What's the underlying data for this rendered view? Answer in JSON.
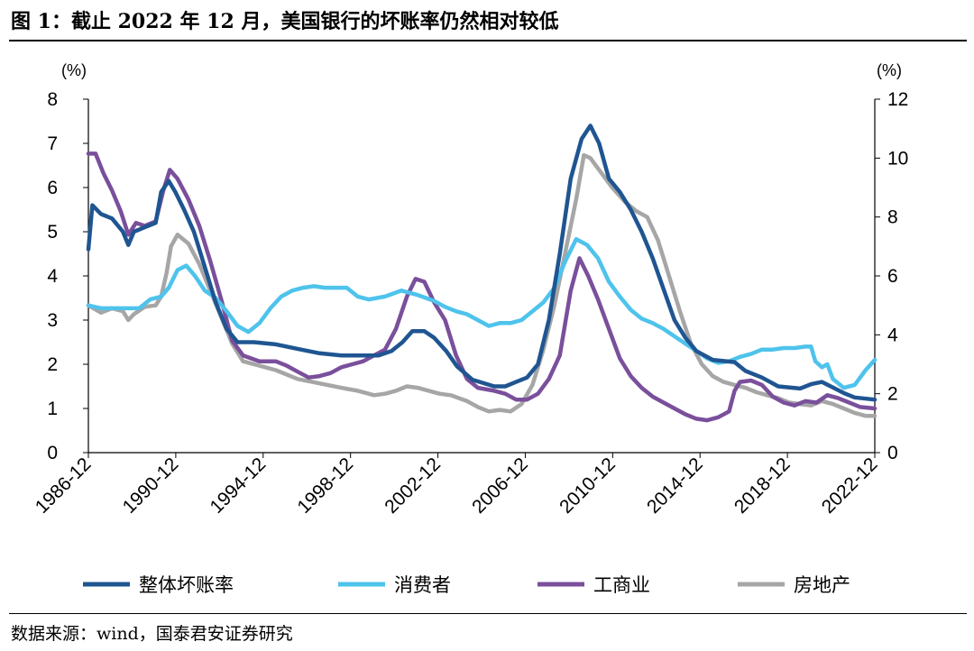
{
  "header": {
    "title": "图 1：截止 2022 年 12 月，美国银行的坏账率仍然相对较低"
  },
  "footer": {
    "source": "数据来源：wind，国泰君安证券研究"
  },
  "chart_data": {
    "type": "line",
    "title": "图 1：截止 2022 年 12 月，美国银行的坏账率仍然相对较低",
    "x_tick_labels": [
      "1986-12",
      "1990-12",
      "1994-12",
      "1998-12",
      "2002-12",
      "2006-12",
      "2010-12",
      "2014-12",
      "2018-12",
      "2022-12"
    ],
    "x_range": [
      1986.92,
      2022.92
    ],
    "y_left": {
      "unit_label": "(%)",
      "range": [
        0,
        8
      ],
      "ticks": [
        "0",
        "1",
        "2",
        "3",
        "4",
        "5",
        "6",
        "7",
        "8"
      ]
    },
    "y_right": {
      "unit_label": "(%)",
      "range": [
        0,
        12
      ],
      "ticks": [
        "0",
        "2",
        "4",
        "6",
        "8",
        "10",
        "12"
      ]
    },
    "grid": false,
    "legend_position": "bottom",
    "series": [
      {
        "name": "整体坏账率",
        "axis": "left",
        "color": "#1f5591",
        "points": [
          [
            1986.92,
            4.6
          ],
          [
            1987.1,
            5.6
          ],
          [
            1987.5,
            5.4
          ],
          [
            1988.0,
            5.3
          ],
          [
            1988.5,
            5.0
          ],
          [
            1988.75,
            4.7
          ],
          [
            1989.0,
            5.0
          ],
          [
            1989.5,
            5.1
          ],
          [
            1990.0,
            5.2
          ],
          [
            1990.25,
            5.9
          ],
          [
            1990.6,
            6.15
          ],
          [
            1990.9,
            5.9
          ],
          [
            1991.3,
            5.5
          ],
          [
            1991.75,
            5.0
          ],
          [
            1992.25,
            4.2
          ],
          [
            1992.75,
            3.4
          ],
          [
            1993.25,
            2.8
          ],
          [
            1993.75,
            2.5
          ],
          [
            1994.5,
            2.5
          ],
          [
            1995.5,
            2.45
          ],
          [
            1996.5,
            2.35
          ],
          [
            1997.5,
            2.25
          ],
          [
            1998.5,
            2.2
          ],
          [
            1999.5,
            2.2
          ],
          [
            2000.2,
            2.2
          ],
          [
            2000.8,
            2.3
          ],
          [
            2001.3,
            2.5
          ],
          [
            2001.75,
            2.75
          ],
          [
            2002.3,
            2.75
          ],
          [
            2002.75,
            2.6
          ],
          [
            2003.3,
            2.3
          ],
          [
            2003.8,
            1.95
          ],
          [
            2004.5,
            1.65
          ],
          [
            2005.5,
            1.5
          ],
          [
            2006.0,
            1.5
          ],
          [
            2006.5,
            1.6
          ],
          [
            2007.0,
            1.7
          ],
          [
            2007.5,
            2.0
          ],
          [
            2008.0,
            3.0
          ],
          [
            2008.5,
            4.5
          ],
          [
            2009.0,
            6.2
          ],
          [
            2009.5,
            7.1
          ],
          [
            2009.9,
            7.4
          ],
          [
            2010.3,
            7.0
          ],
          [
            2010.75,
            6.2
          ],
          [
            2011.25,
            5.9
          ],
          [
            2011.75,
            5.5
          ],
          [
            2012.25,
            5.0
          ],
          [
            2012.75,
            4.4
          ],
          [
            2013.25,
            3.7
          ],
          [
            2013.75,
            3.0
          ],
          [
            2014.25,
            2.6
          ],
          [
            2014.75,
            2.3
          ],
          [
            2015.5,
            2.1
          ],
          [
            2016.5,
            2.05
          ],
          [
            2017.0,
            1.85
          ],
          [
            2017.75,
            1.7
          ],
          [
            2018.5,
            1.5
          ],
          [
            2019.5,
            1.45
          ],
          [
            2020.0,
            1.55
          ],
          [
            2020.5,
            1.6
          ],
          [
            2020.9,
            1.5
          ],
          [
            2021.5,
            1.35
          ],
          [
            2022.0,
            1.25
          ],
          [
            2022.92,
            1.2
          ]
        ]
      },
      {
        "name": "消费者",
        "axis": "right",
        "color": "#4ec3ec",
        "points": [
          [
            1986.92,
            5.0
          ],
          [
            1987.5,
            4.9
          ],
          [
            1988.5,
            4.9
          ],
          [
            1989.25,
            4.9
          ],
          [
            1989.75,
            5.2
          ],
          [
            1990.25,
            5.3
          ],
          [
            1990.6,
            5.6
          ],
          [
            1991.0,
            6.2
          ],
          [
            1991.4,
            6.35
          ],
          [
            1991.8,
            6.0
          ],
          [
            1992.25,
            5.5
          ],
          [
            1992.75,
            5.25
          ],
          [
            1993.25,
            4.8
          ],
          [
            1993.75,
            4.3
          ],
          [
            1994.25,
            4.1
          ],
          [
            1994.75,
            4.4
          ],
          [
            1995.25,
            4.9
          ],
          [
            1995.75,
            5.3
          ],
          [
            1996.25,
            5.5
          ],
          [
            1996.75,
            5.6
          ],
          [
            1997.25,
            5.65
          ],
          [
            1997.75,
            5.6
          ],
          [
            1998.25,
            5.6
          ],
          [
            1998.75,
            5.6
          ],
          [
            1999.25,
            5.3
          ],
          [
            1999.75,
            5.2
          ],
          [
            2000.5,
            5.3
          ],
          [
            2001.25,
            5.5
          ],
          [
            2002.0,
            5.35
          ],
          [
            2002.75,
            5.15
          ],
          [
            2003.25,
            4.95
          ],
          [
            2003.75,
            4.8
          ],
          [
            2004.25,
            4.7
          ],
          [
            2004.75,
            4.5
          ],
          [
            2005.25,
            4.3
          ],
          [
            2005.75,
            4.4
          ],
          [
            2006.25,
            4.4
          ],
          [
            2006.75,
            4.5
          ],
          [
            2007.25,
            4.8
          ],
          [
            2007.75,
            5.1
          ],
          [
            2008.25,
            5.6
          ],
          [
            2008.75,
            6.5
          ],
          [
            2009.25,
            7.25
          ],
          [
            2009.75,
            7.05
          ],
          [
            2010.25,
            6.6
          ],
          [
            2010.75,
            5.8
          ],
          [
            2011.25,
            5.3
          ],
          [
            2011.75,
            4.85
          ],
          [
            2012.25,
            4.55
          ],
          [
            2012.75,
            4.4
          ],
          [
            2013.25,
            4.2
          ],
          [
            2013.75,
            3.95
          ],
          [
            2014.25,
            3.7
          ],
          [
            2014.75,
            3.45
          ],
          [
            2015.25,
            3.2
          ],
          [
            2015.75,
            3.05
          ],
          [
            2016.25,
            3.1
          ],
          [
            2016.75,
            3.25
          ],
          [
            2017.25,
            3.35
          ],
          [
            2017.75,
            3.5
          ],
          [
            2018.25,
            3.5
          ],
          [
            2018.75,
            3.55
          ],
          [
            2019.25,
            3.55
          ],
          [
            2019.75,
            3.6
          ],
          [
            2020.0,
            3.6
          ],
          [
            2020.2,
            3.1
          ],
          [
            2020.5,
            2.9
          ],
          [
            2020.75,
            3.0
          ],
          [
            2021.0,
            2.5
          ],
          [
            2021.5,
            2.2
          ],
          [
            2022.0,
            2.3
          ],
          [
            2022.5,
            2.8
          ],
          [
            2022.92,
            3.15
          ]
        ]
      },
      {
        "name": "工商业",
        "axis": "right",
        "color": "#7a4f9b",
        "points": [
          [
            1986.92,
            10.15
          ],
          [
            1987.25,
            10.15
          ],
          [
            1987.6,
            9.5
          ],
          [
            1988.0,
            8.9
          ],
          [
            1988.4,
            8.2
          ],
          [
            1988.75,
            7.4
          ],
          [
            1989.1,
            7.8
          ],
          [
            1989.5,
            7.7
          ],
          [
            1990.0,
            7.85
          ],
          [
            1990.35,
            8.9
          ],
          [
            1990.65,
            9.6
          ],
          [
            1991.0,
            9.3
          ],
          [
            1991.5,
            8.6
          ],
          [
            1992.0,
            7.7
          ],
          [
            1992.5,
            6.5
          ],
          [
            1993.0,
            5.2
          ],
          [
            1993.5,
            3.8
          ],
          [
            1994.0,
            3.3
          ],
          [
            1994.75,
            3.1
          ],
          [
            1995.5,
            3.1
          ],
          [
            1996.0,
            2.95
          ],
          [
            1996.5,
            2.75
          ],
          [
            1997.0,
            2.55
          ],
          [
            1997.5,
            2.6
          ],
          [
            1998.0,
            2.7
          ],
          [
            1998.5,
            2.9
          ],
          [
            1999.0,
            3.0
          ],
          [
            1999.5,
            3.1
          ],
          [
            2000.0,
            3.3
          ],
          [
            2000.5,
            3.5
          ],
          [
            2001.0,
            4.2
          ],
          [
            2001.5,
            5.3
          ],
          [
            2001.9,
            5.9
          ],
          [
            2002.3,
            5.8
          ],
          [
            2002.75,
            5.1
          ],
          [
            2003.25,
            4.5
          ],
          [
            2003.75,
            3.3
          ],
          [
            2004.25,
            2.5
          ],
          [
            2004.75,
            2.2
          ],
          [
            2005.5,
            2.1
          ],
          [
            2006.0,
            2.0
          ],
          [
            2006.5,
            1.8
          ],
          [
            2007.0,
            1.8
          ],
          [
            2007.5,
            2.0
          ],
          [
            2008.0,
            2.5
          ],
          [
            2008.5,
            3.3
          ],
          [
            2009.0,
            5.5
          ],
          [
            2009.4,
            6.6
          ],
          [
            2009.8,
            6.0
          ],
          [
            2010.25,
            5.2
          ],
          [
            2010.75,
            4.2
          ],
          [
            2011.25,
            3.2
          ],
          [
            2011.75,
            2.6
          ],
          [
            2012.25,
            2.2
          ],
          [
            2012.75,
            1.9
          ],
          [
            2013.25,
            1.7
          ],
          [
            2013.75,
            1.5
          ],
          [
            2014.25,
            1.3
          ],
          [
            2014.75,
            1.15
          ],
          [
            2015.25,
            1.1
          ],
          [
            2015.75,
            1.2
          ],
          [
            2016.25,
            1.4
          ],
          [
            2016.5,
            2.1
          ],
          [
            2016.75,
            2.4
          ],
          [
            2017.25,
            2.45
          ],
          [
            2017.75,
            2.3
          ],
          [
            2018.25,
            1.9
          ],
          [
            2018.75,
            1.7
          ],
          [
            2019.25,
            1.6
          ],
          [
            2019.75,
            1.75
          ],
          [
            2020.25,
            1.7
          ],
          [
            2020.75,
            1.95
          ],
          [
            2021.25,
            1.85
          ],
          [
            2021.75,
            1.7
          ],
          [
            2022.25,
            1.55
          ],
          [
            2022.92,
            1.5
          ]
        ]
      },
      {
        "name": "房地产",
        "axis": "right",
        "color": "#a6a6a6",
        "points": [
          [
            1986.92,
            5.0
          ],
          [
            1987.5,
            4.75
          ],
          [
            1988.0,
            4.9
          ],
          [
            1988.5,
            4.8
          ],
          [
            1988.75,
            4.5
          ],
          [
            1989.0,
            4.7
          ],
          [
            1989.5,
            4.95
          ],
          [
            1990.0,
            5.0
          ],
          [
            1990.25,
            5.3
          ],
          [
            1990.5,
            6.1
          ],
          [
            1990.7,
            7.0
          ],
          [
            1991.0,
            7.4
          ],
          [
            1991.5,
            7.1
          ],
          [
            1992.0,
            6.4
          ],
          [
            1992.5,
            5.5
          ],
          [
            1993.0,
            4.6
          ],
          [
            1993.5,
            3.7
          ],
          [
            1994.0,
            3.1
          ],
          [
            1994.75,
            2.95
          ],
          [
            1995.5,
            2.8
          ],
          [
            1996.5,
            2.5
          ],
          [
            1997.5,
            2.35
          ],
          [
            1998.5,
            2.2
          ],
          [
            1999.25,
            2.1
          ],
          [
            2000.0,
            1.95
          ],
          [
            2000.5,
            2.0
          ],
          [
            2001.0,
            2.1
          ],
          [
            2001.5,
            2.25
          ],
          [
            2002.0,
            2.2
          ],
          [
            2002.5,
            2.1
          ],
          [
            2003.0,
            2.0
          ],
          [
            2003.5,
            1.95
          ],
          [
            2004.25,
            1.75
          ],
          [
            2004.75,
            1.55
          ],
          [
            2005.25,
            1.4
          ],
          [
            2005.75,
            1.45
          ],
          [
            2006.25,
            1.4
          ],
          [
            2006.75,
            1.65
          ],
          [
            2007.25,
            2.3
          ],
          [
            2007.75,
            3.5
          ],
          [
            2008.25,
            5.0
          ],
          [
            2008.75,
            6.8
          ],
          [
            2009.25,
            8.6
          ],
          [
            2009.6,
            10.1
          ],
          [
            2009.9,
            10.0
          ],
          [
            2010.4,
            9.5
          ],
          [
            2010.9,
            9.0
          ],
          [
            2011.5,
            8.5
          ],
          [
            2012.0,
            8.2
          ],
          [
            2012.5,
            8.0
          ],
          [
            2013.0,
            7.2
          ],
          [
            2013.5,
            6.0
          ],
          [
            2014.0,
            4.8
          ],
          [
            2014.5,
            3.7
          ],
          [
            2015.0,
            3.0
          ],
          [
            2015.5,
            2.6
          ],
          [
            2016.0,
            2.4
          ],
          [
            2016.5,
            2.3
          ],
          [
            2017.0,
            2.2
          ],
          [
            2017.5,
            2.05
          ],
          [
            2018.0,
            1.95
          ],
          [
            2018.5,
            1.85
          ],
          [
            2019.0,
            1.7
          ],
          [
            2019.5,
            1.65
          ],
          [
            2020.0,
            1.6
          ],
          [
            2020.5,
            1.75
          ],
          [
            2021.0,
            1.65
          ],
          [
            2021.5,
            1.5
          ],
          [
            2022.0,
            1.35
          ],
          [
            2022.5,
            1.25
          ],
          [
            2022.92,
            1.25
          ]
        ]
      }
    ]
  }
}
